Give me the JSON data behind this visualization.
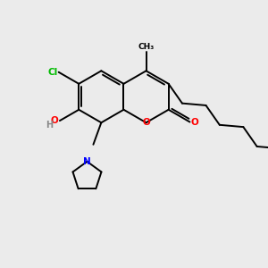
{
  "background_color": "#ebebeb",
  "fig_width": 3.0,
  "fig_height": 3.0,
  "dpi": 100,
  "atom_colors": {
    "O": "#ff0000",
    "Cl": "#00bb00",
    "N": "#0000ff",
    "H": "#888888",
    "C": "#000000"
  },
  "bond_color": "#000000",
  "bond_width": 1.4
}
